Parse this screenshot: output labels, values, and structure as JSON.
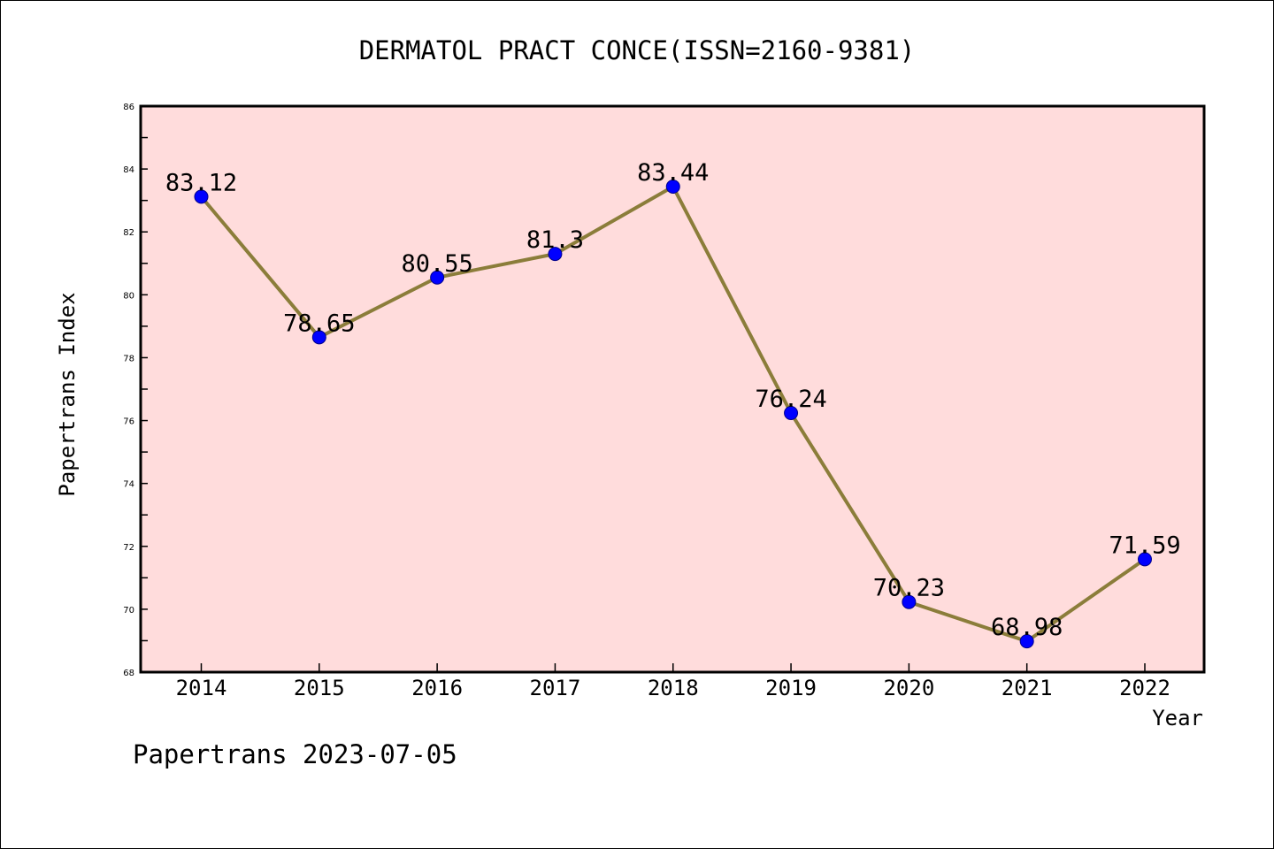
{
  "chart_data": {
    "type": "line",
    "title": "DERMATOL PRACT CONCE(ISSN=2160-9381)",
    "xlabel": "Year",
    "ylabel": "Papertrans Index",
    "categories": [
      "2014",
      "2015",
      "2016",
      "2017",
      "2018",
      "2019",
      "2020",
      "2021",
      "2022"
    ],
    "series": [
      {
        "values": [
          83.12,
          78.65,
          80.55,
          81.3,
          83.44,
          76.24,
          70.23,
          68.98,
          71.59
        ],
        "labels": [
          "83.12",
          "78.65",
          "80.55",
          "81.3",
          "83.44",
          "76.24",
          "70.23",
          "68.98",
          "71.59"
        ],
        "line_color": "#8b7d3a",
        "marker_color": "#0000ff"
      }
    ],
    "ylim": [
      68,
      86
    ],
    "yticks": [
      "68",
      "70",
      "72",
      "74",
      "76",
      "78",
      "80",
      "82",
      "84",
      "86"
    ],
    "grid": false,
    "plot_background": "#ffdcdc"
  },
  "footer": "Papertrans 2023-07-05"
}
